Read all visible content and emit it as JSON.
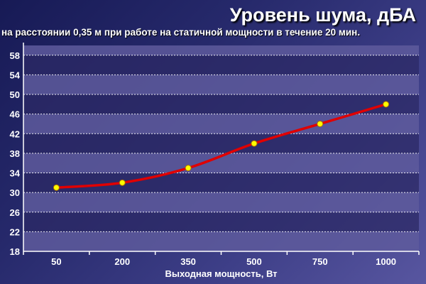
{
  "chart_data": {
    "type": "line",
    "title": "Уровень шума, дБА",
    "subtitle": "на расстоянии 0,35 м при работе на статичной мощности в течение 20 мин.",
    "xlabel": "Выходная мощность, Вт",
    "ylabel": "",
    "categories": [
      "50",
      "200",
      "350",
      "500",
      "750",
      "1000"
    ],
    "series": [
      {
        "values": [
          31,
          32,
          35,
          40,
          44,
          48
        ]
      }
    ],
    "ylim": [
      18,
      60
    ],
    "yticks": [
      18,
      22,
      26,
      30,
      34,
      38,
      42,
      46,
      50,
      54,
      58
    ],
    "grid": true,
    "legend": "none",
    "colors": {
      "line": "#e00000",
      "marker": "#ffff00",
      "band_light": "#5e5a9c",
      "band_dark": "#2c2a66",
      "text": "#ffffff"
    }
  }
}
